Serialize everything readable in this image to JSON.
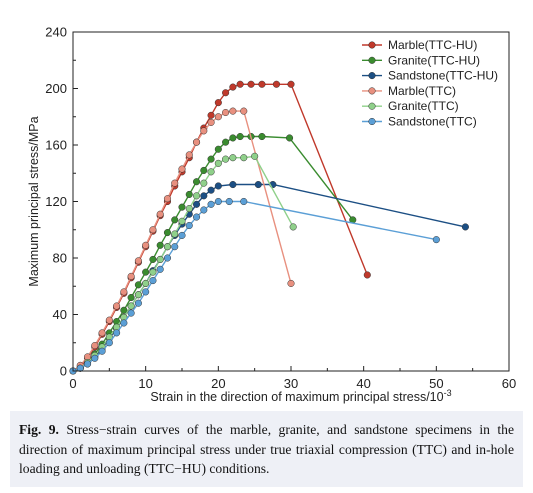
{
  "chart_data": {
    "type": "line",
    "xlabel": "Strain in the direction of maximum principal stress/10",
    "xlabel_sup": "-3",
    "ylabel": "Maximum principal stress/MPa",
    "xlim": [
      0,
      60
    ],
    "ylim": [
      0,
      240
    ],
    "xticks": [
      "0",
      "10",
      "20",
      "30",
      "40",
      "50",
      "60"
    ],
    "yticks": [
      "0",
      "40",
      "80",
      "120",
      "160",
      "200",
      "240"
    ],
    "grid": false,
    "legend_position": "top-right",
    "series": [
      {
        "name": "Marble(TTC-HU)",
        "color": "#c0392b",
        "points": [
          [
            0,
            0
          ],
          [
            1,
            3
          ],
          [
            2,
            9
          ],
          [
            3,
            17
          ],
          [
            4,
            26
          ],
          [
            5,
            35
          ],
          [
            6,
            45
          ],
          [
            7,
            55
          ],
          [
            8,
            66
          ],
          [
            9,
            77
          ],
          [
            10,
            88
          ],
          [
            11,
            99
          ],
          [
            12,
            110
          ],
          [
            13,
            120
          ],
          [
            14,
            131
          ],
          [
            15,
            141
          ],
          [
            16,
            151
          ],
          [
            17,
            162
          ],
          [
            18,
            172
          ],
          [
            19,
            181
          ],
          [
            20,
            190
          ],
          [
            21,
            197
          ],
          [
            22,
            201
          ],
          [
            23,
            203
          ],
          [
            24.5,
            203
          ],
          [
            26,
            203
          ],
          [
            28,
            203
          ],
          [
            30,
            203
          ],
          [
            40.5,
            68
          ]
        ]
      },
      {
        "name": "Granite(TTC-HU)",
        "color": "#3a8c2f",
        "points": [
          [
            0,
            0
          ],
          [
            1,
            2
          ],
          [
            2,
            6
          ],
          [
            3,
            12
          ],
          [
            4,
            19
          ],
          [
            5,
            27
          ],
          [
            6,
            35
          ],
          [
            7,
            43
          ],
          [
            8,
            52
          ],
          [
            9,
            61
          ],
          [
            10,
            70
          ],
          [
            11,
            79
          ],
          [
            12,
            89
          ],
          [
            13,
            98
          ],
          [
            14,
            107
          ],
          [
            15,
            116
          ],
          [
            16,
            125
          ],
          [
            17,
            134
          ],
          [
            18,
            142
          ],
          [
            19,
            150
          ],
          [
            20,
            157
          ],
          [
            21,
            162
          ],
          [
            22,
            165
          ],
          [
            23,
            166
          ],
          [
            24.5,
            166
          ],
          [
            26,
            166
          ],
          [
            29.8,
            165
          ],
          [
            38.5,
            107
          ]
        ]
      },
      {
        "name": "Sandstone(TTC-HU)",
        "color": "#1c4f84",
        "points": [
          [
            0,
            0
          ],
          [
            1,
            2
          ],
          [
            2,
            5
          ],
          [
            3,
            10
          ],
          [
            4,
            16
          ],
          [
            5,
            23
          ],
          [
            6,
            30
          ],
          [
            7,
            38
          ],
          [
            8,
            46
          ],
          [
            9,
            54
          ],
          [
            10,
            62
          ],
          [
            11,
            71
          ],
          [
            12,
            79
          ],
          [
            13,
            88
          ],
          [
            14,
            96
          ],
          [
            15,
            104
          ],
          [
            16,
            111
          ],
          [
            17,
            118
          ],
          [
            18,
            124
          ],
          [
            19,
            128
          ],
          [
            20,
            131
          ],
          [
            22,
            132
          ],
          [
            25.5,
            132
          ],
          [
            27.5,
            132
          ],
          [
            54,
            102
          ]
        ]
      },
      {
        "name": "Marble(TTC)",
        "color": "#e8907f",
        "points": [
          [
            0,
            0
          ],
          [
            1,
            4
          ],
          [
            2,
            10
          ],
          [
            3,
            18
          ],
          [
            4,
            27
          ],
          [
            5,
            36
          ],
          [
            6,
            46
          ],
          [
            7,
            56
          ],
          [
            8,
            67
          ],
          [
            9,
            78
          ],
          [
            10,
            89
          ],
          [
            11,
            100
          ],
          [
            12,
            111
          ],
          [
            13,
            122
          ],
          [
            14,
            133
          ],
          [
            15,
            143
          ],
          [
            16,
            153
          ],
          [
            17,
            162
          ],
          [
            18,
            170
          ],
          [
            19,
            176
          ],
          [
            20,
            180
          ],
          [
            21,
            183
          ],
          [
            22,
            184
          ],
          [
            23.5,
            184
          ],
          [
            30,
            62
          ]
        ]
      },
      {
        "name": "Granite(TTC)",
        "color": "#8fd08a",
        "points": [
          [
            0,
            0
          ],
          [
            1,
            2
          ],
          [
            2,
            6
          ],
          [
            3,
            11
          ],
          [
            4,
            17
          ],
          [
            5,
            24
          ],
          [
            6,
            31
          ],
          [
            7,
            38
          ],
          [
            8,
            46
          ],
          [
            9,
            54
          ],
          [
            10,
            62
          ],
          [
            11,
            70
          ],
          [
            12,
            79
          ],
          [
            13,
            88
          ],
          [
            14,
            97
          ],
          [
            15,
            106
          ],
          [
            16,
            115
          ],
          [
            17,
            124
          ],
          [
            18,
            133
          ],
          [
            19,
            141
          ],
          [
            20,
            147
          ],
          [
            21,
            150
          ],
          [
            22,
            151
          ],
          [
            23.5,
            151
          ],
          [
            25,
            152
          ],
          [
            30.3,
            102
          ]
        ]
      },
      {
        "name": "Sandstone(TTC)",
        "color": "#5b9fd6",
        "points": [
          [
            0,
            0
          ],
          [
            1,
            2
          ],
          [
            2,
            5
          ],
          [
            3,
            9
          ],
          [
            4,
            14
          ],
          [
            5,
            20
          ],
          [
            6,
            27
          ],
          [
            7,
            34
          ],
          [
            8,
            41
          ],
          [
            9,
            48
          ],
          [
            10,
            56
          ],
          [
            11,
            64
          ],
          [
            12,
            72
          ],
          [
            13,
            80
          ],
          [
            14,
            88
          ],
          [
            15,
            96
          ],
          [
            16,
            103
          ],
          [
            17,
            109
          ],
          [
            18,
            114
          ],
          [
            19,
            118
          ],
          [
            20,
            120
          ],
          [
            21.5,
            120
          ],
          [
            23.5,
            120
          ],
          [
            50,
            93
          ]
        ]
      }
    ]
  },
  "caption": {
    "label": "Fig. 9.",
    "text": "Stress−strain curves of the marble, granite, and sandstone specimens in the direction of maximum principal stress under true triaxial compression (TTC) and in-hole loading and unloading (TTC−HU) conditions."
  }
}
